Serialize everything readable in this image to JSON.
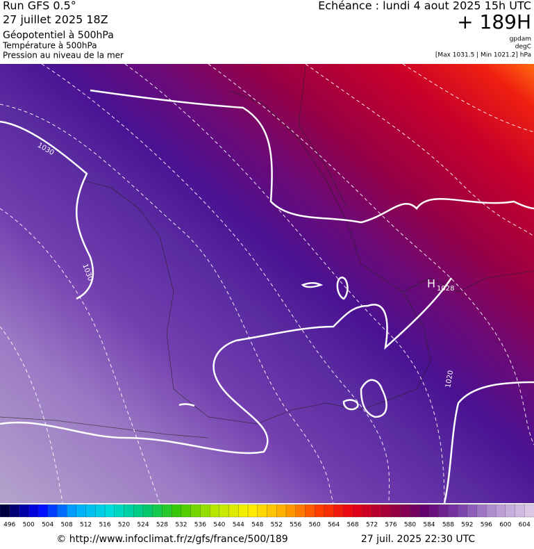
{
  "header": {
    "model": "Run GFS 0.5°",
    "run": "27 juillet 2025 18Z",
    "title": "Géopotentiel à 500hPa",
    "subtitle1": "Température à 500hPa",
    "subtitle2": "Pression au niveau de la mer",
    "valid": "Echéance : lundi 4 aout 2025 15h UTC",
    "lead": "+ 189H",
    "unit1": "gpdam",
    "unit2": "degC",
    "range": "[Max 1031.5 | Min 1021.2] hPa"
  },
  "map": {
    "labels": [
      "1030",
      "1030",
      "1020"
    ],
    "high": "H",
    "high_value": "1028"
  },
  "legend": {
    "values": [
      496,
      500,
      504,
      508,
      512,
      516,
      520,
      524,
      528,
      532,
      536,
      540,
      544,
      548,
      552,
      556,
      560,
      564,
      568,
      572,
      576,
      580,
      584,
      588,
      592,
      596,
      600,
      604
    ]
  },
  "footer": {
    "source": "© http://www.infoclimat.fr/z/gfs/france/500/189",
    "time": "27 juil. 2025 22:30 UTC"
  }
}
